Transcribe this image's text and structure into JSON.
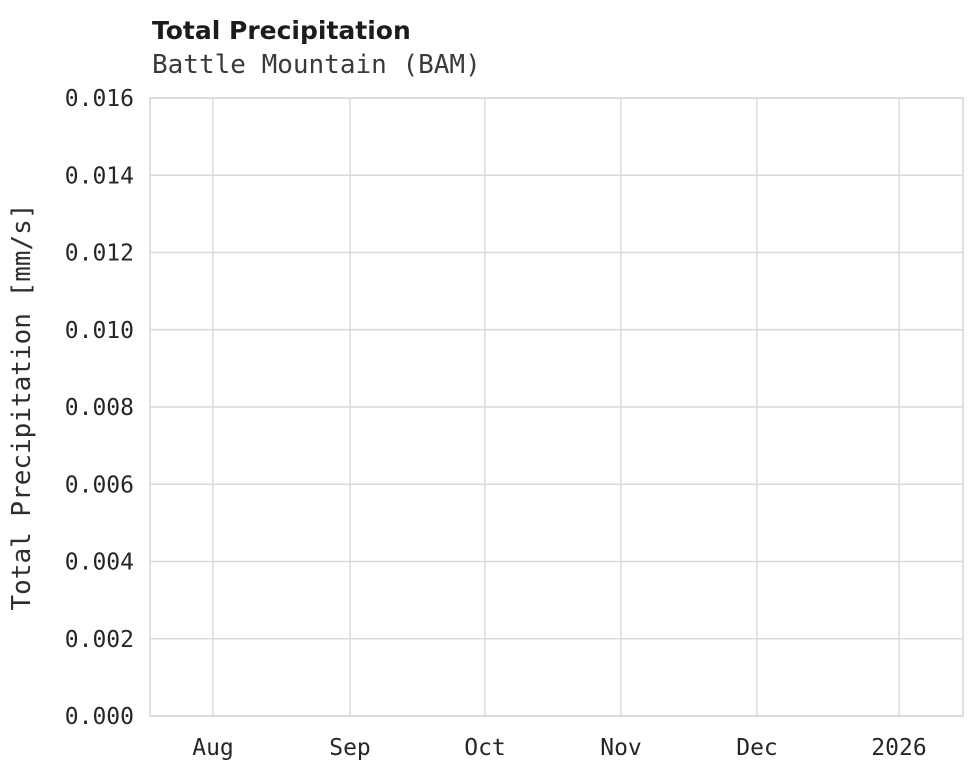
{
  "chart_data": {
    "type": "line",
    "title": "Total Precipitation",
    "subtitle": "Battle Mountain (BAM)",
    "xlabel": "",
    "ylabel": "Total Precipitation [mm/s]",
    "x_tick_labels": [
      "Aug",
      "Sep",
      "Oct",
      "Nov",
      "Dec",
      "2026"
    ],
    "y_ticks": [
      0.0,
      0.002,
      0.004,
      0.006,
      0.008,
      0.01,
      0.012,
      0.014,
      0.016
    ],
    "y_tick_labels": [
      "0.000",
      "0.002",
      "0.004",
      "0.006",
      "0.008",
      "0.010",
      "0.012",
      "0.014",
      "0.016"
    ],
    "ylim": [
      0.0,
      0.016
    ],
    "series": [],
    "grid": true,
    "legend": "none",
    "colors": {
      "grid": "#d9d9d9",
      "tick_text": "#262626",
      "title_text": "#1c1c1c",
      "subtitle_text": "#3a3a3a",
      "background": "#ffffff"
    }
  }
}
